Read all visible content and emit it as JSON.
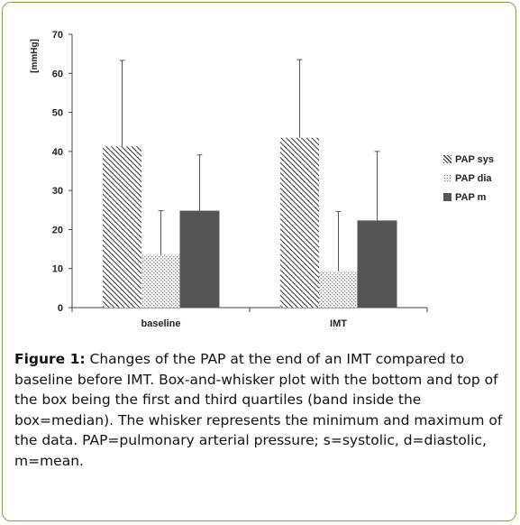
{
  "chart_data": {
    "type": "bar",
    "ylabel": "[mmHg]",
    "ylim": [
      0,
      70
    ],
    "yticks": [
      "0",
      "10",
      "20",
      "30",
      "40",
      "50",
      "60",
      "70"
    ],
    "categories": [
      "baseline",
      "IMT"
    ],
    "series": [
      {
        "name": "PAP sys",
        "values": [
          41.3,
          43.5
        ],
        "whisker_max": [
          63.3,
          63.5
        ],
        "pattern": "diagonal-hatch"
      },
      {
        "name": "PAP dia",
        "values": [
          13.5,
          9.3
        ],
        "whisker_max": [
          24.8,
          24.6
        ],
        "pattern": "dots"
      },
      {
        "name": "PAP m",
        "values": [
          24.7,
          22.2
        ],
        "whisker_max": [
          39.1,
          40.0
        ],
        "pattern": "dark-solid"
      }
    ],
    "legend_position": "right",
    "grid": false
  },
  "caption": {
    "label": "Figure 1:",
    "text": " Changes of the PAP at the end of an IMT compared to baseline before IMT. Box-and-whisker plot with the bottom and top of the box being the first and third quartiles (band inside the box=median). The whisker represents the minimum and maximum of the data. PAP=pulmonary arterial pressure; s=systolic, d=diastolic, m=mean."
  },
  "colors": {
    "frame_border": "#7aa84a",
    "axis": "#444444",
    "dark_bar": "#555555",
    "hatch_line": "#333333",
    "dot_fill": "#888888"
  }
}
